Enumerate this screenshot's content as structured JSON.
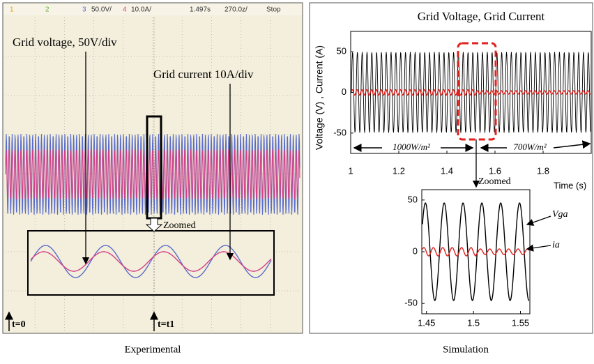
{
  "chart_data": [
    {
      "type": "oscilloscope",
      "header": [
        "1",
        "2",
        "3",
        "50.0V/",
        "4",
        "10.0A/",
        "1.497s",
        "270.0z/",
        "Stop"
      ],
      "annotations": [
        "Grid voltage, 50V/div",
        "Grid current 10A/div",
        "Zoomed",
        "t=0",
        "t=t1"
      ],
      "colors": [
        "#5a6ccb",
        "#d43f86"
      ],
      "caption": "Experimental"
    },
    {
      "type": "line",
      "title": "Grid Voltage, Grid Current",
      "ylabel": "Voltage (V) , Current (A)",
      "xlabel": "Time (s)",
      "xlim": [
        1,
        2
      ],
      "ylim": [
        -75,
        75
      ],
      "xticks": [
        1,
        1.2,
        1.4,
        1.6,
        1.8
      ],
      "yticks": [
        -50,
        0,
        50
      ],
      "annotations": [
        "1000W/m²",
        "700W/m²"
      ],
      "colors": [
        "#000000",
        "#e0201c"
      ],
      "caption": "Simulation"
    },
    {
      "type": "line",
      "title": "Zoomed",
      "xlim": [
        1.445,
        1.56
      ],
      "ylim": [
        -60,
        60
      ],
      "xticks": [
        1.45,
        1.5,
        1.55
      ],
      "yticks": [
        -50,
        0,
        50
      ],
      "series": [
        {
          "name": "Vga",
          "color": "#000000"
        },
        {
          "name": "ia",
          "color": "#e0201c"
        }
      ]
    }
  ]
}
